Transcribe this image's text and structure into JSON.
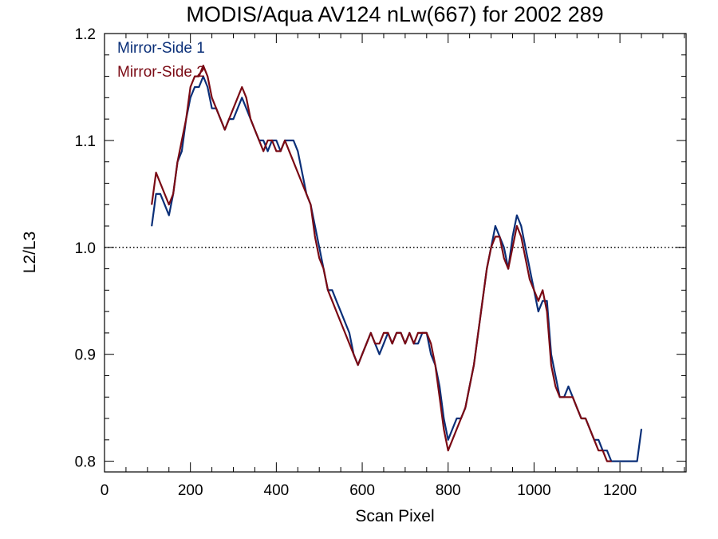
{
  "chart_data": {
    "type": "line",
    "title": "MODIS/Aqua AV124 nLw(667) for 2002 289",
    "xlabel": "Scan Pixel",
    "ylabel": "L2/L3",
    "xlim": [
      0,
      1354
    ],
    "ylim": [
      0.79,
      1.2
    ],
    "x_ticks": [
      "0",
      "200",
      "400",
      "600",
      "800",
      "1000",
      "1200"
    ],
    "y_ticks": [
      "0.8",
      "0.9",
      "1.0",
      "1.1",
      "1.2"
    ],
    "reference_line": {
      "y": 1.0,
      "style": "dotted"
    },
    "grid": false,
    "legend": {
      "position": "top-left"
    },
    "series": [
      {
        "name": "Mirror-Side 1",
        "color": "#0a2f78",
        "x": [
          110,
          120,
          130,
          140,
          150,
          160,
          170,
          180,
          190,
          200,
          210,
          220,
          230,
          240,
          250,
          260,
          270,
          280,
          290,
          300,
          310,
          320,
          330,
          340,
          350,
          360,
          370,
          380,
          390,
          400,
          410,
          420,
          430,
          440,
          450,
          460,
          470,
          480,
          490,
          500,
          510,
          520,
          530,
          540,
          550,
          560,
          570,
          580,
          590,
          600,
          610,
          620,
          630,
          640,
          650,
          660,
          670,
          680,
          690,
          700,
          710,
          720,
          730,
          740,
          750,
          760,
          770,
          780,
          790,
          800,
          810,
          820,
          830,
          840,
          850,
          860,
          870,
          880,
          890,
          900,
          910,
          920,
          930,
          940,
          950,
          960,
          970,
          980,
          990,
          1000,
          1010,
          1020,
          1030,
          1040,
          1050,
          1060,
          1070,
          1080,
          1090,
          1100,
          1110,
          1120,
          1130,
          1140,
          1150,
          1160,
          1170,
          1180,
          1190,
          1200,
          1210,
          1220,
          1230,
          1240,
          1250
        ],
        "y": [
          1.02,
          1.05,
          1.05,
          1.04,
          1.03,
          1.05,
          1.08,
          1.09,
          1.12,
          1.14,
          1.15,
          1.15,
          1.16,
          1.15,
          1.13,
          1.13,
          1.12,
          1.11,
          1.12,
          1.12,
          1.13,
          1.14,
          1.13,
          1.12,
          1.11,
          1.1,
          1.1,
          1.09,
          1.1,
          1.1,
          1.09,
          1.1,
          1.1,
          1.1,
          1.09,
          1.07,
          1.05,
          1.04,
          1.02,
          1.0,
          0.98,
          0.96,
          0.96,
          0.95,
          0.94,
          0.93,
          0.92,
          0.9,
          0.89,
          0.9,
          0.91,
          0.92,
          0.91,
          0.9,
          0.91,
          0.92,
          0.91,
          0.92,
          0.92,
          0.91,
          0.92,
          0.91,
          0.91,
          0.92,
          0.92,
          0.9,
          0.89,
          0.87,
          0.84,
          0.82,
          0.83,
          0.84,
          0.84,
          0.85,
          0.87,
          0.89,
          0.92,
          0.95,
          0.98,
          1.0,
          1.02,
          1.01,
          1.0,
          0.98,
          1.01,
          1.03,
          1.02,
          1.0,
          0.98,
          0.96,
          0.94,
          0.95,
          0.95,
          0.9,
          0.88,
          0.86,
          0.86,
          0.87,
          0.86,
          0.85,
          0.84,
          0.84,
          0.83,
          0.82,
          0.82,
          0.81,
          0.81,
          0.8,
          0.8,
          0.8,
          0.8,
          0.8,
          0.8,
          0.8,
          0.83
        ]
      },
      {
        "name": "Mirror-Side 2",
        "color": "#7a0a14",
        "x": [
          110,
          120,
          130,
          140,
          150,
          160,
          170,
          180,
          190,
          200,
          210,
          220,
          230,
          240,
          250,
          260,
          270,
          280,
          290,
          300,
          310,
          320,
          330,
          340,
          350,
          360,
          370,
          380,
          390,
          400,
          410,
          420,
          430,
          440,
          450,
          460,
          470,
          480,
          490,
          500,
          510,
          520,
          530,
          540,
          550,
          560,
          570,
          580,
          590,
          600,
          610,
          620,
          630,
          640,
          650,
          660,
          670,
          680,
          690,
          700,
          710,
          720,
          730,
          740,
          750,
          760,
          770,
          780,
          790,
          800,
          810,
          820,
          830,
          840,
          850,
          860,
          870,
          880,
          890,
          900,
          910,
          920,
          930,
          940,
          950,
          960,
          970,
          980,
          990,
          1000,
          1010,
          1020,
          1030,
          1040,
          1050,
          1060,
          1070,
          1080,
          1090,
          1100,
          1110,
          1120,
          1130,
          1140,
          1150,
          1160,
          1170,
          1180
        ],
        "y": [
          1.04,
          1.07,
          1.06,
          1.05,
          1.04,
          1.05,
          1.08,
          1.1,
          1.12,
          1.15,
          1.16,
          1.16,
          1.17,
          1.16,
          1.14,
          1.13,
          1.12,
          1.11,
          1.12,
          1.13,
          1.14,
          1.15,
          1.14,
          1.12,
          1.11,
          1.1,
          1.09,
          1.1,
          1.1,
          1.09,
          1.09,
          1.1,
          1.09,
          1.08,
          1.07,
          1.06,
          1.05,
          1.04,
          1.01,
          0.99,
          0.98,
          0.96,
          0.95,
          0.94,
          0.93,
          0.92,
          0.91,
          0.9,
          0.89,
          0.9,
          0.91,
          0.92,
          0.91,
          0.91,
          0.92,
          0.92,
          0.91,
          0.92,
          0.92,
          0.91,
          0.92,
          0.91,
          0.92,
          0.92,
          0.92,
          0.91,
          0.89,
          0.86,
          0.83,
          0.81,
          0.82,
          0.83,
          0.84,
          0.85,
          0.87,
          0.89,
          0.92,
          0.95,
          0.98,
          1.0,
          1.01,
          1.01,
          0.99,
          0.98,
          1.0,
          1.02,
          1.01,
          0.99,
          0.97,
          0.96,
          0.95,
          0.96,
          0.94,
          0.89,
          0.87,
          0.86,
          0.86,
          0.86,
          0.86,
          0.85,
          0.84,
          0.84,
          0.83,
          0.82,
          0.81,
          0.81,
          0.8,
          0.8
        ]
      }
    ]
  }
}
